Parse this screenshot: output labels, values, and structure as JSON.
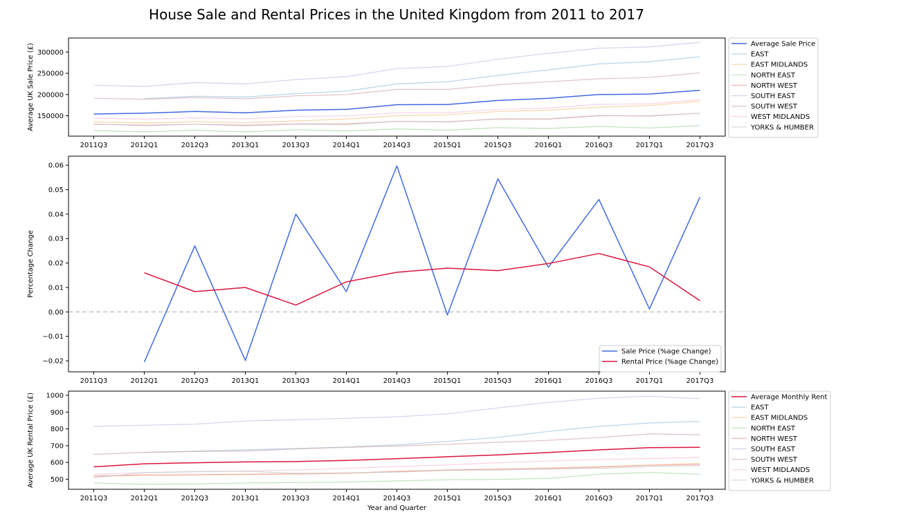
{
  "figure": {
    "title": "House Sale and Rental Prices in the United Kingdom from 2011 to 2017"
  },
  "chart_data": [
    {
      "type": "line",
      "id": "sale",
      "ylabel": "Average UK Sale Price (£)",
      "xlabel": "",
      "categories": [
        "2011Q3",
        "2012Q1",
        "2012Q3",
        "2013Q1",
        "2013Q3",
        "2014Q1",
        "2014Q3",
        "2015Q1",
        "2015Q3",
        "2016Q1",
        "2016Q3",
        "2017Q1",
        "2017Q3"
      ],
      "ylim": [
        102000,
        333000
      ],
      "yticks": [
        150000,
        200000,
        250000,
        300000
      ],
      "legend_position": "outside-right",
      "series": [
        {
          "name": "Average Sale Price",
          "color": "#4169e1",
          "width": 1.5,
          "opacity": 1,
          "values": [
            154000,
            156000,
            160000,
            157000,
            163000,
            165000,
            176000,
            176500,
            186000,
            191000,
            200000,
            201000,
            210000
          ]
        },
        {
          "name": "EAST",
          "color": "#9ec5e2",
          "width": 1.2,
          "opacity": 0.75,
          "values": [
            null,
            190000,
            196000,
            194000,
            202000,
            208000,
            225000,
            230000,
            245000,
            258000,
            272000,
            277000,
            289000
          ]
        },
        {
          "name": "EAST MIDLANDS",
          "color": "#f6c68e",
          "width": 1.2,
          "opacity": 0.75,
          "values": [
            136000,
            133000,
            136000,
            134000,
            138000,
            142000,
            150000,
            152000,
            160000,
            163000,
            170000,
            174000,
            184000
          ]
        },
        {
          "name": "NORTH EAST",
          "color": "#a6d9a0",
          "width": 1.2,
          "opacity": 0.75,
          "values": [
            115000,
            112000,
            116000,
            112000,
            117000,
            114000,
            119000,
            116000,
            122000,
            120000,
            125000,
            121000,
            127000
          ]
        },
        {
          "name": "NORTH WEST",
          "color": "#ee9d9d",
          "width": 1.2,
          "opacity": 0.75,
          "values": [
            130000,
            128000,
            130000,
            128000,
            131000,
            131000,
            137000,
            136000,
            142000,
            142000,
            150000,
            150000,
            156000
          ]
        },
        {
          "name": "SOUTH EAST",
          "color": "#cdbfe3",
          "width": 1.2,
          "opacity": 0.75,
          "values": [
            222000,
            219000,
            228000,
            225000,
            235000,
            242000,
            261000,
            266000,
            283000,
            297000,
            309000,
            312000,
            323000
          ]
        },
        {
          "name": "SOUTH WEST",
          "color": "#d6acac",
          "width": 1.2,
          "opacity": 0.75,
          "values": [
            191000,
            189000,
            193000,
            190000,
            197000,
            200000,
            212000,
            212000,
            223000,
            230000,
            237000,
            240000,
            251000
          ]
        },
        {
          "name": "WEST MIDLANDS",
          "color": "#f5c2dc",
          "width": 1.2,
          "opacity": 0.75,
          "values": [
            144000,
            142000,
            145000,
            143000,
            148000,
            150000,
            157000,
            157000,
            165000,
            168000,
            177000,
            178000,
            188000
          ]
        },
        {
          "name": "YORKS & HUMBER",
          "color": "#c8c8c8",
          "width": 1.2,
          "opacity": 0.75,
          "values": [
            131000,
            126000,
            130000,
            126000,
            130000,
            129000,
            137000,
            135000,
            143000,
            143000,
            151000,
            149000,
            156000
          ]
        }
      ]
    },
    {
      "type": "line",
      "id": "change",
      "ylabel": "Percentage Change",
      "xlabel": "",
      "categories": [
        "2011Q3",
        "2012Q1",
        "2012Q3",
        "2013Q1",
        "2013Q3",
        "2014Q1",
        "2014Q3",
        "2015Q1",
        "2015Q3",
        "2016Q1",
        "2016Q3",
        "2017Q1",
        "2017Q3"
      ],
      "ylim": [
        -0.0245,
        0.0637
      ],
      "yticks": [
        -0.02,
        -0.01,
        0.0,
        0.01,
        0.02,
        0.03,
        0.04,
        0.05,
        0.06
      ],
      "ytick_labels": [
        "−0.02",
        "−0.01",
        "0.00",
        "0.01",
        "0.02",
        "0.03",
        "0.04",
        "0.05",
        "0.06"
      ],
      "zero_line": true,
      "legend_position": "lower-right",
      "series": [
        {
          "name": "Sale Price (%age Change)",
          "color": "#4169e1",
          "width": 1.5,
          "opacity": 1,
          "values": [
            null,
            -0.0205,
            0.027,
            -0.0199,
            0.04,
            0.0083,
            0.0597,
            -0.0013,
            0.0544,
            0.0183,
            0.046,
            0.0012,
            0.047
          ]
        },
        {
          "name": "Rental Price (%age Change)",
          "color": "#dc143c",
          "width": 1.5,
          "opacity": 1,
          "values": [
            null,
            0.016,
            0.0083,
            0.01,
            0.0028,
            0.0123,
            0.0162,
            0.0179,
            0.0169,
            0.0198,
            0.0239,
            0.0184,
            0.0046
          ]
        }
      ]
    },
    {
      "type": "line",
      "id": "rent",
      "ylabel": "Average UK Rental Price (£)",
      "xlabel": "Year and Quarter",
      "categories": [
        "2011Q3",
        "2012Q1",
        "2012Q3",
        "2013Q1",
        "2013Q3",
        "2014Q1",
        "2014Q3",
        "2015Q1",
        "2015Q3",
        "2016Q1",
        "2016Q3",
        "2017Q1",
        "2017Q3"
      ],
      "ylim": [
        440,
        1025
      ],
      "yticks": [
        500,
        600,
        700,
        800,
        900,
        1000
      ],
      "legend_position": "outside-right",
      "series": [
        {
          "name": "Average Monthly Rent",
          "color": "#dc143c",
          "width": 1.5,
          "opacity": 1,
          "values": [
            574,
            592,
            598,
            603,
            605,
            612,
            622,
            634,
            645,
            659,
            675,
            688,
            690
          ]
        },
        {
          "name": "EAST",
          "color": "#9ec5e2",
          "width": 1.2,
          "opacity": 0.75,
          "values": [
            null,
            660,
            668,
            675,
            683,
            692,
            705,
            725,
            750,
            785,
            815,
            835,
            845
          ]
        },
        {
          "name": "EAST MIDLANDS",
          "color": "#f6c68e",
          "width": 1.2,
          "opacity": 0.75,
          "values": [
            517,
            523,
            526,
            528,
            530,
            535,
            545,
            555,
            560,
            567,
            575,
            585,
            595
          ]
        },
        {
          "name": "NORTH EAST",
          "color": "#a6d9a0",
          "width": 1.2,
          "opacity": 0.75,
          "values": [
            478,
            470,
            472,
            478,
            480,
            483,
            490,
            497,
            499,
            505,
            530,
            540,
            530
          ]
        },
        {
          "name": "NORTH WEST",
          "color": "#ee9d9d",
          "width": 1.2,
          "opacity": 0.75,
          "values": [
            520,
            525,
            527,
            530,
            532,
            536,
            547,
            555,
            560,
            565,
            572,
            583,
            588
          ]
        },
        {
          "name": "SOUTH EAST",
          "color": "#cdbfe3",
          "width": 1.2,
          "opacity": 0.75,
          "values": [
            815,
            822,
            828,
            847,
            855,
            863,
            872,
            890,
            925,
            958,
            983,
            995,
            980
          ]
        },
        {
          "name": "SOUTH WEST",
          "color": "#d6acac",
          "width": 1.2,
          "opacity": 0.75,
          "values": [
            648,
            660,
            665,
            668,
            680,
            690,
            698,
            708,
            720,
            732,
            748,
            770,
            765
          ]
        },
        {
          "name": "WEST MIDLANDS",
          "color": "#f5c2dc",
          "width": 1.2,
          "opacity": 0.75,
          "values": [
            530,
            540,
            545,
            550,
            555,
            565,
            575,
            585,
            598,
            608,
            618,
            623,
            630
          ]
        },
        {
          "name": "YORKS & HUMBER",
          "color": "#c8c8c8",
          "width": 1.2,
          "opacity": 0.75,
          "values": [
            510,
            538,
            545,
            548,
            535,
            538,
            542,
            552,
            555,
            560,
            565,
            575,
            582
          ]
        }
      ]
    }
  ]
}
